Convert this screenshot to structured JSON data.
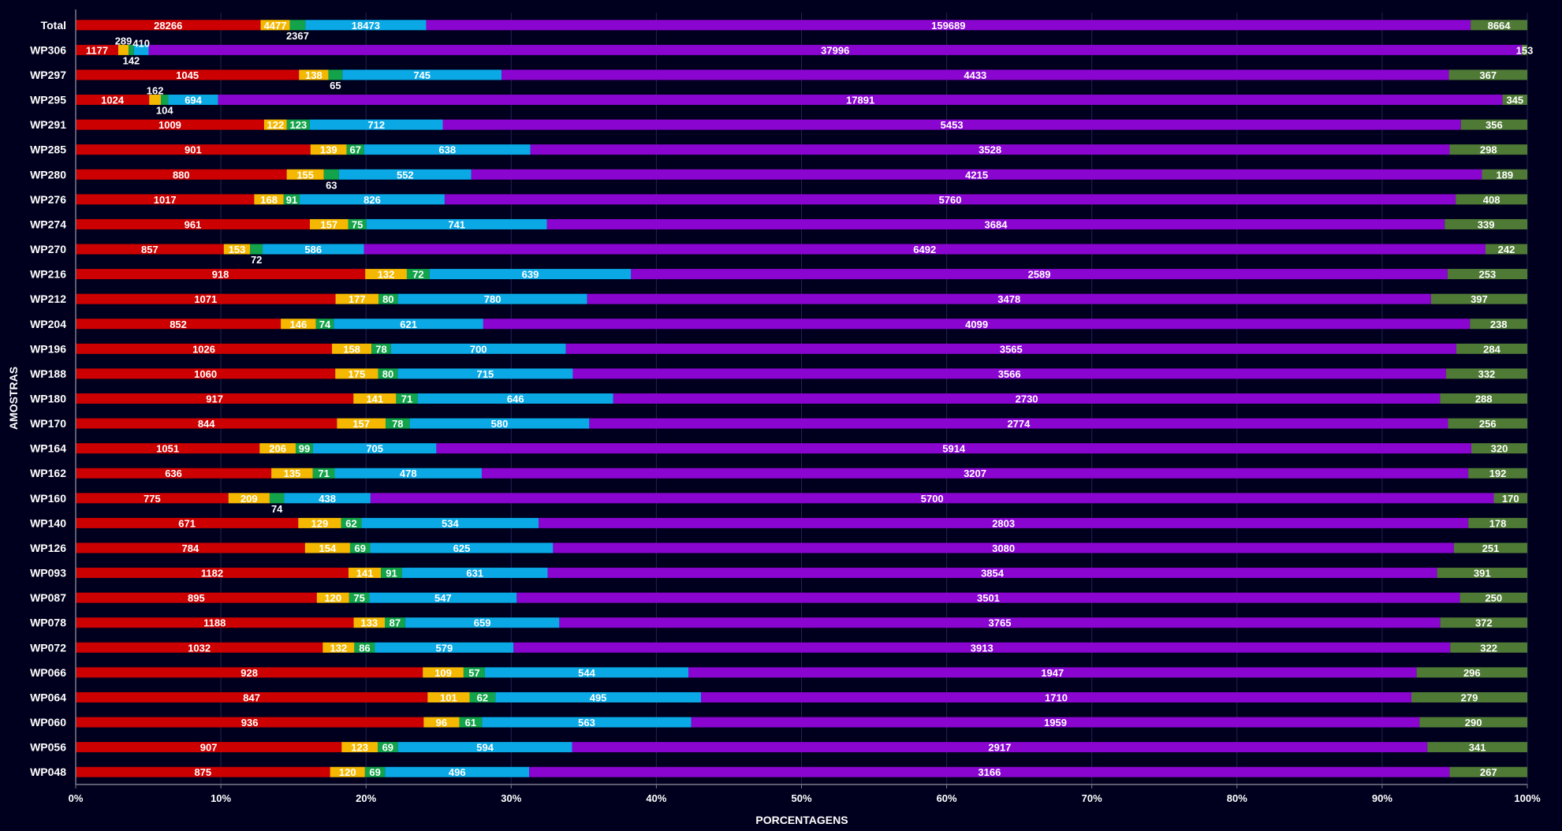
{
  "chart_data": {
    "type": "bar",
    "orientation": "horizontal",
    "stacked": "percent",
    "xlabel": "PORCENTAGENS",
    "ylabel": "AMOSTRAS",
    "xlim": [
      0,
      100
    ],
    "x_ticks": [
      "0%",
      "10%",
      "20%",
      "30%",
      "40%",
      "50%",
      "60%",
      "70%",
      "80%",
      "90%",
      "100%"
    ],
    "grid": true,
    "categories": [
      "Total",
      "WP306",
      "WP297",
      "WP295",
      "WP291",
      "WP285",
      "WP280",
      "WP276",
      "WP274",
      "WP270",
      "WP216",
      "WP212",
      "WP204",
      "WP196",
      "WP188",
      "WP180",
      "WP170",
      "WP164",
      "WP162",
      "WP160",
      "WP140",
      "WP126",
      "WP093",
      "WP087",
      "WP078",
      "WP072",
      "WP066",
      "WP064",
      "WP060",
      "WP056",
      "WP048"
    ],
    "series": [
      {
        "color": "#cc0000",
        "values": [
          28266,
          1177,
          1045,
          1024,
          1009,
          901,
          880,
          1017,
          961,
          857,
          918,
          1071,
          852,
          1026,
          1060,
          917,
          844,
          1051,
          636,
          775,
          671,
          784,
          1182,
          895,
          1188,
          1032,
          928,
          847,
          936,
          907,
          875
        ]
      },
      {
        "color": "#f5b800",
        "values": [
          4477,
          289,
          138,
          162,
          122,
          139,
          155,
          168,
          157,
          153,
          132,
          177,
          146,
          158,
          175,
          141,
          157,
          206,
          135,
          209,
          129,
          154,
          141,
          120,
          133,
          132,
          109,
          101,
          96,
          123,
          120
        ]
      },
      {
        "color": "#13a34a",
        "values": [
          2367,
          142,
          65,
          104,
          123,
          67,
          63,
          91,
          75,
          72,
          72,
          80,
          74,
          78,
          80,
          71,
          78,
          99,
          71,
          74,
          62,
          69,
          91,
          75,
          87,
          86,
          57,
          62,
          61,
          69,
          69
        ]
      },
      {
        "color": "#0aa9e6",
        "values": [
          18473,
          410,
          745,
          694,
          712,
          638,
          552,
          826,
          741,
          586,
          639,
          780,
          621,
          700,
          715,
          646,
          580,
          705,
          478,
          438,
          534,
          625,
          631,
          547,
          659,
          579,
          544,
          495,
          563,
          594,
          496
        ]
      },
      {
        "color": "#8a05d0",
        "values": [
          159689,
          37996,
          4433,
          17891,
          5453,
          3528,
          4215,
          5760,
          3684,
          6492,
          2589,
          3478,
          4099,
          3565,
          3566,
          2730,
          2774,
          5914,
          3207,
          5700,
          2803,
          3080,
          3854,
          3501,
          3765,
          3913,
          1947,
          1710,
          1959,
          2917,
          3166
        ]
      },
      {
        "color": "#4f7a36",
        "values": [
          8664,
          153,
          367,
          345,
          356,
          298,
          189,
          408,
          339,
          242,
          253,
          397,
          238,
          284,
          332,
          288,
          256,
          320,
          192,
          170,
          178,
          251,
          391,
          250,
          372,
          322,
          296,
          279,
          290,
          341,
          267
        ]
      }
    ]
  },
  "colors": {
    "background": "#00001e",
    "grid": "#232350",
    "axis": "#7a7a8c",
    "text": "#ffffff"
  }
}
